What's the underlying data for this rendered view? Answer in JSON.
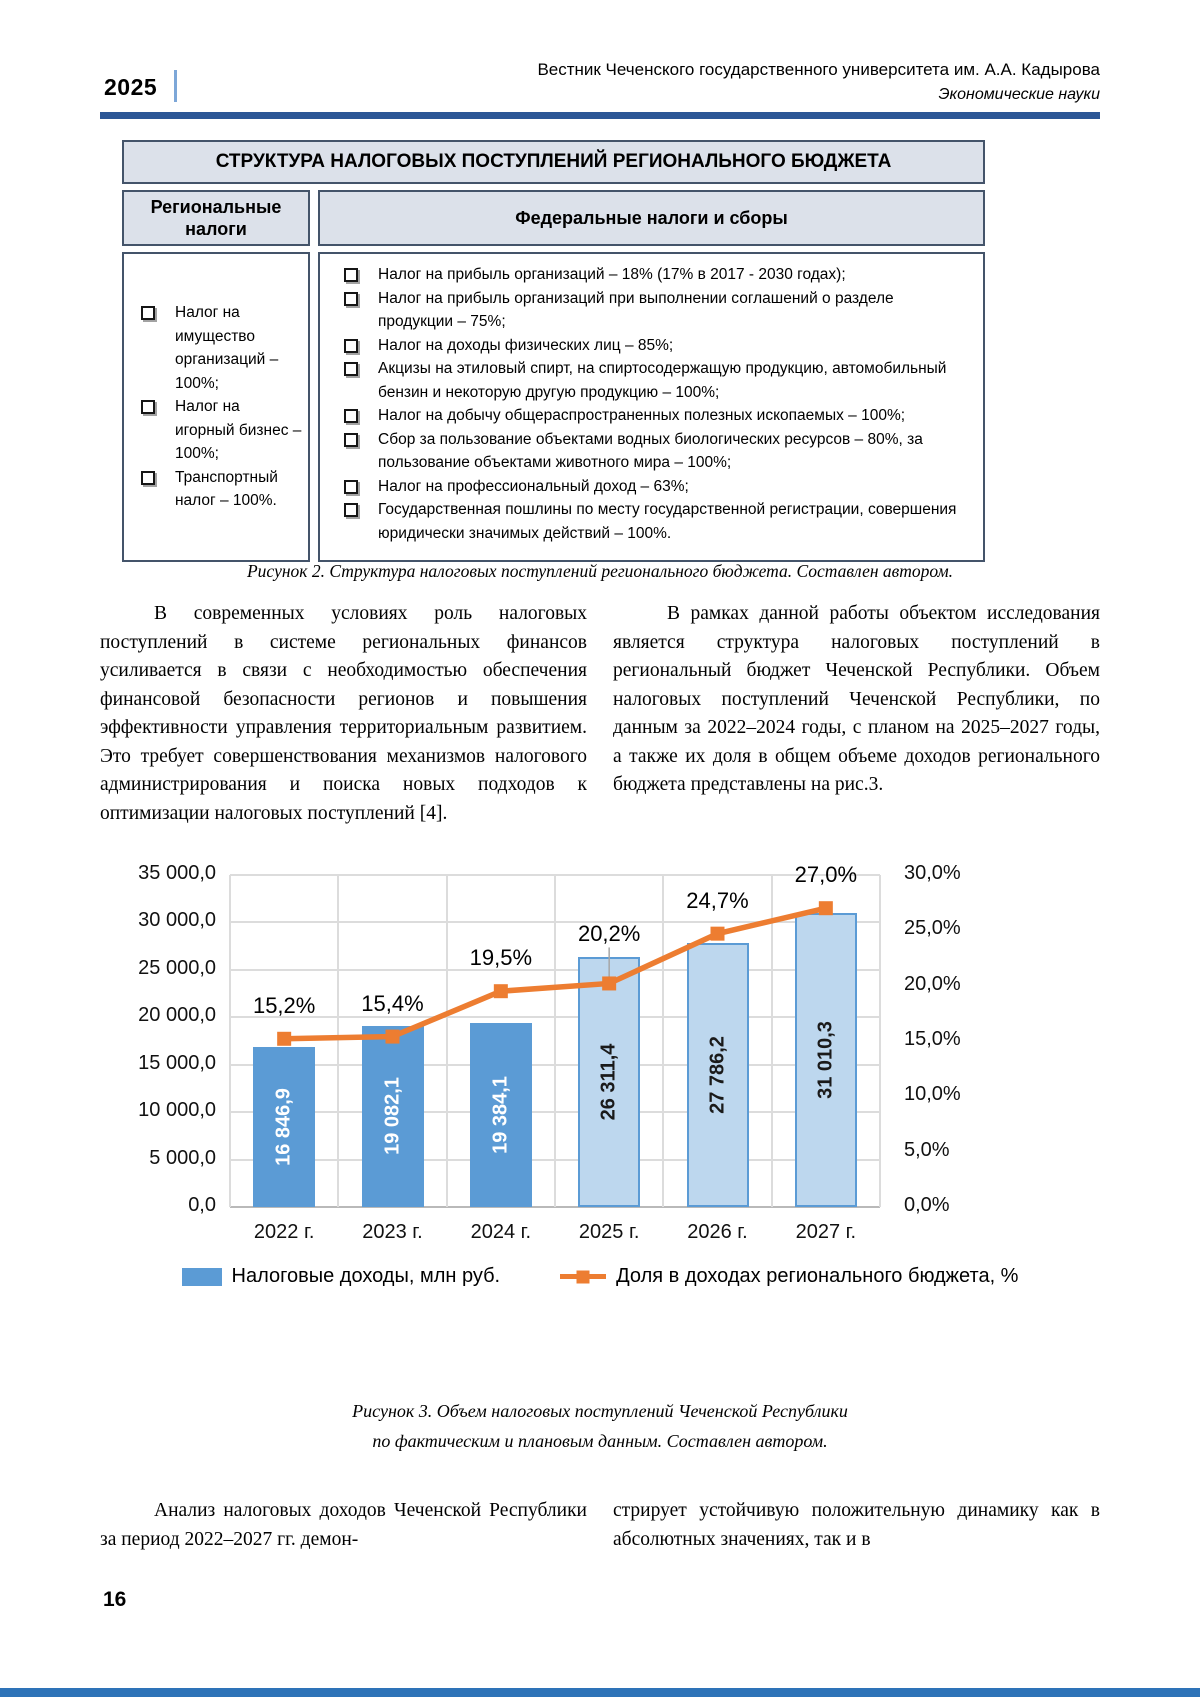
{
  "header": {
    "year": "2025",
    "journal_title": "Вестник Чеченского государственного университета им. А.А. Кадырова",
    "journal_subtitle": "Экономические науки"
  },
  "figure2": {
    "title": "СТРУКТУРА НАЛОГОВЫХ ПОСТУПЛЕНИЙ РЕГИОНАЛЬНОГО БЮДЖЕТА",
    "left_header": "Региональные налоги",
    "right_header": "Федеральные налоги и сборы",
    "bullet_icon": "❑",
    "regional_items": [
      "Налог на имущество организаций – 100%;",
      "Налог на игорный бизнес – 100%;",
      "Транспортный налог – 100%."
    ],
    "federal_items": [
      "Налог на прибыль организаций – 18% (17% в 2017 - 2030 годах);",
      "Налог на прибыль организаций при выполнении соглашений о разделе продукции – 75%;",
      "Налог на доходы физических лиц – 85%;",
      "Акцизы на этиловый спирт, на спиртосодержащую продукцию, автомобильный бензин и некоторую другую продукцию – 100%;",
      "Налог на добычу общераспространенных полезных ископаемых – 100%;",
      "Сбор за пользование объектами водных биологических ресурсов – 80%, за пользование объектами животного мира – 100%;",
      "Налог на профессиональный доход – 63%;",
      "Государственная пошлины по месту государственной регистрации, совершения юридически значимых действий – 100%."
    ],
    "caption": "Рисунок 2. Структура налоговых поступлений регионального бюджета. Составлен автором."
  },
  "body": {
    "para_left": "В современных условиях роль налоговых поступлений в системе региональных финансов усиливается в связи с необходимостью обеспечения финансовой безопасности регионов и повышения эффективности управления территориальным развитием. Это требует совершенствования механизмов налогового администрирования и поиска новых подходов к оптимизации налоговых поступлений [4].",
    "para_right": "В рамках данной работы объектом исследования является структура налоговых поступлений в региональный бюджет Чеченской Республики. Объем налоговых поступлений Чеченской Республики, по данным за 2022–2024 годы, с планом на 2025–2027 годы, а также их доля в общем объеме доходов регионального бюджета представлены на рис.3.",
    "bottom_left": "Анализ налоговых доходов Чеченской Республики за период 2022–2027 гг. демон-",
    "bottom_right": "стрирует устойчивую положительную динамику как в абсолютных значениях, так и в"
  },
  "chart_data": {
    "type": "combo bar+line",
    "categories": [
      "2022 г.",
      "2023 г.",
      "2024 г.",
      "2025 г.",
      "2026 г.",
      "2027 г."
    ],
    "series": [
      {
        "name": "Налоговые доходы, млн руб.",
        "type": "bar",
        "axis": "left",
        "values": [
          16846.9,
          19082.1,
          19384.1,
          26311.4,
          27786.2,
          31010.3
        ],
        "data_labels": [
          "16 846,9",
          "19 082,1",
          "19 384,1",
          "26 311,4",
          "27 786,2",
          "31 010,3"
        ]
      },
      {
        "name": "Доля в доходах регионального бюджета, %",
        "type": "line",
        "axis": "right",
        "values": [
          15.2,
          15.4,
          19.5,
          20.2,
          24.7,
          27.0
        ],
        "data_labels": [
          "15,2%",
          "15,4%",
          "19,5%",
          "20,2%",
          "24,7%",
          "27,0%"
        ]
      }
    ],
    "left_axis": {
      "min": 0,
      "max": 35000,
      "ticks": [
        "35 000,0",
        "30 000,0",
        "25 000,0",
        "20 000,0",
        "15 000,0",
        "10 000,0",
        "5 000,0",
        "0,0"
      ]
    },
    "right_axis": {
      "min": 0,
      "max": 30,
      "ticks": [
        "30,0%",
        "25,0%",
        "20,0%",
        "15,0%",
        "10,0%",
        "5,0%",
        "0,0%"
      ]
    },
    "plan_from_index": 3,
    "grid": true,
    "legend_position": "bottom",
    "colors": {
      "bar_actual": "#5B9BD5",
      "bar_plan_fill": "#BDD7EE",
      "bar_plan_border": "#5B9BD5",
      "line": "#ED7D31",
      "grid": "#dcdcdc",
      "axis": "#b9b9b9",
      "leader": "#a6a6a6"
    }
  },
  "figure3": {
    "caption_line1": "Рисунок 3. Объем налоговых поступлений Чеченской Республики",
    "caption_line2": "по фактическим и плановым данным. Составлен автором."
  },
  "footer": {
    "page_number": "16"
  }
}
